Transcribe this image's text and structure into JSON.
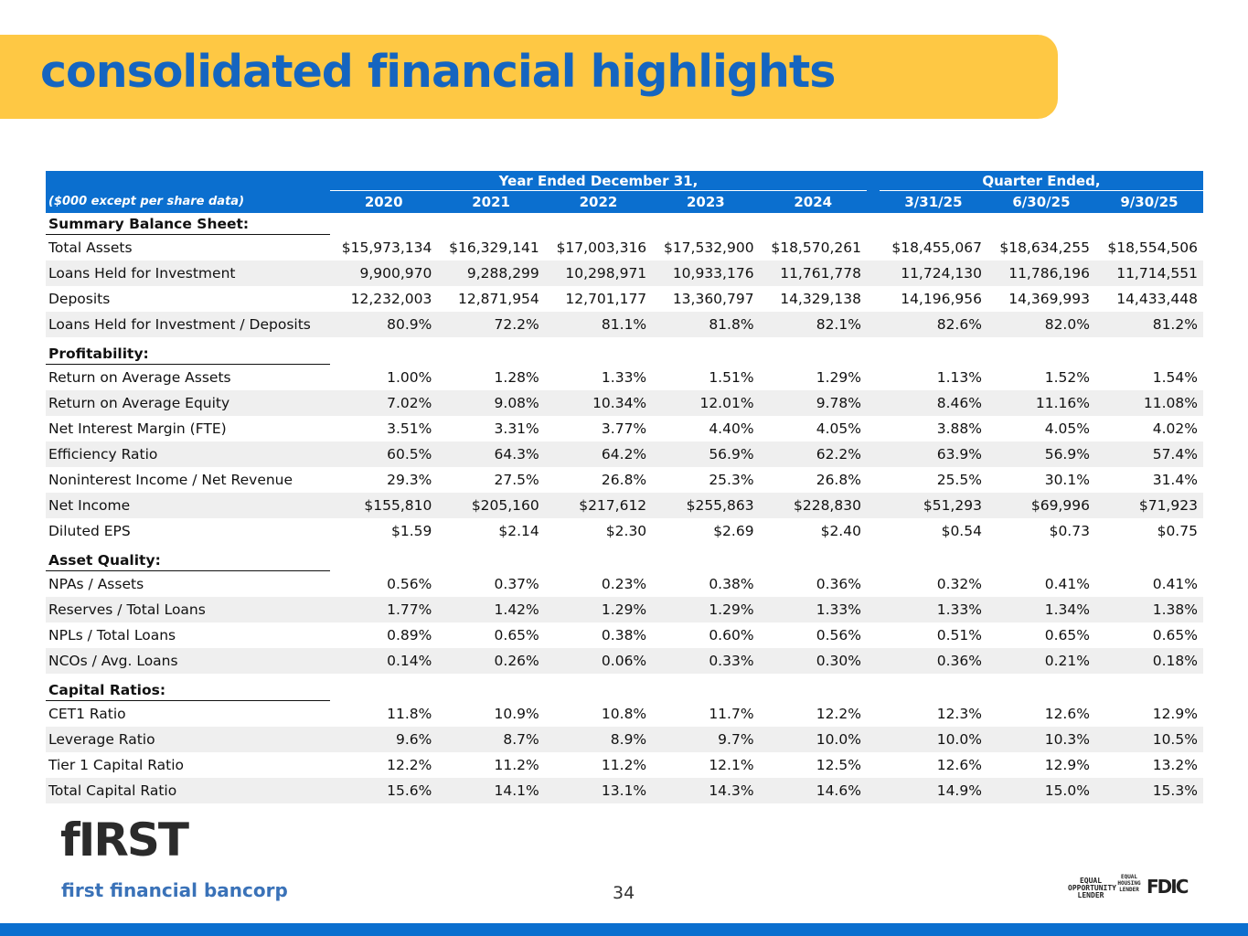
{
  "header": {
    "title": "consolidated financial highlights"
  },
  "table": {
    "note": "($000 except per share data)",
    "groups": [
      "Year Ended December 31,",
      "Quarter Ended,"
    ],
    "columns": [
      "2020",
      "2021",
      "2022",
      "2023",
      "2024",
      "3/31/25",
      "6/30/25",
      "9/30/25"
    ],
    "sections": [
      {
        "title": "Summary Balance Sheet:",
        "rows": [
          [
            "Total Assets",
            "$15,973,134",
            "$16,329,141",
            "$17,003,316",
            "$17,532,900",
            "$18,570,261",
            "$18,455,067",
            "$18,634,255",
            "$18,554,506"
          ],
          [
            "Loans Held for Investment",
            "9,900,970",
            "9,288,299",
            "10,298,971",
            "10,933,176",
            "11,761,778",
            "11,724,130",
            "11,786,196",
            "11,714,551"
          ],
          [
            "Deposits",
            "12,232,003",
            "12,871,954",
            "12,701,177",
            "13,360,797",
            "14,329,138",
            "14,196,956",
            "14,369,993",
            "14,433,448"
          ],
          [
            "Loans Held for Investment / Deposits",
            "80.9%",
            "72.2%",
            "81.1%",
            "81.8%",
            "82.1%",
            "82.6%",
            "82.0%",
            "81.2%"
          ]
        ]
      },
      {
        "title": "Profitability:",
        "rows": [
          [
            "Return on Average Assets",
            "1.00%",
            "1.28%",
            "1.33%",
            "1.51%",
            "1.29%",
            "1.13%",
            "1.52%",
            "1.54%"
          ],
          [
            "Return on Average Equity",
            "7.02%",
            "9.08%",
            "10.34%",
            "12.01%",
            "9.78%",
            "8.46%",
            "11.16%",
            "11.08%"
          ],
          [
            "Net Interest Margin (FTE)",
            "3.51%",
            "3.31%",
            "3.77%",
            "4.40%",
            "4.05%",
            "3.88%",
            "4.05%",
            "4.02%"
          ],
          [
            "Efficiency Ratio",
            "60.5%",
            "64.3%",
            "64.2%",
            "56.9%",
            "62.2%",
            "63.9%",
            "56.9%",
            "57.4%"
          ],
          [
            "Noninterest Income / Net Revenue",
            "29.3%",
            "27.5%",
            "26.8%",
            "25.3%",
            "26.8%",
            "25.5%",
            "30.1%",
            "31.4%"
          ],
          [
            "Net Income",
            "$155,810",
            "$205,160",
            "$217,612",
            "$255,863",
            "$228,830",
            "$51,293",
            "$69,996",
            "$71,923"
          ],
          [
            "Diluted EPS",
            "$1.59",
            "$2.14",
            "$2.30",
            "$2.69",
            "$2.40",
            "$0.54",
            "$0.73",
            "$0.75"
          ]
        ]
      },
      {
        "title": "Asset Quality:",
        "rows": [
          [
            "NPAs / Assets",
            "0.56%",
            "0.37%",
            "0.23%",
            "0.38%",
            "0.36%",
            "0.32%",
            "0.41%",
            "0.41%"
          ],
          [
            "Reserves / Total Loans",
            "1.77%",
            "1.42%",
            "1.29%",
            "1.29%",
            "1.33%",
            "1.33%",
            "1.34%",
            "1.38%"
          ],
          [
            "NPLs / Total Loans",
            "0.89%",
            "0.65%",
            "0.38%",
            "0.60%",
            "0.56%",
            "0.51%",
            "0.65%",
            "0.65%"
          ],
          [
            "NCOs / Avg. Loans",
            "0.14%",
            "0.26%",
            "0.06%",
            "0.33%",
            "0.30%",
            "0.36%",
            "0.21%",
            "0.18%"
          ]
        ]
      },
      {
        "title": "Capital Ratios:",
        "rows": [
          [
            "CET1 Ratio",
            "11.8%",
            "10.9%",
            "10.8%",
            "11.7%",
            "12.2%",
            "12.3%",
            "12.6%",
            "12.9%"
          ],
          [
            "Leverage Ratio",
            "9.6%",
            "8.7%",
            "8.9%",
            "9.7%",
            "10.0%",
            "10.0%",
            "10.3%",
            "10.5%"
          ],
          [
            "Tier 1 Capital Ratio",
            "12.2%",
            "11.2%",
            "11.2%",
            "12.1%",
            "12.5%",
            "12.6%",
            "12.9%",
            "13.2%"
          ],
          [
            "Total Capital Ratio",
            "15.6%",
            "14.1%",
            "13.1%",
            "14.3%",
            "14.6%",
            "14.9%",
            "15.0%",
            "15.3%"
          ]
        ]
      }
    ]
  },
  "footer": {
    "logo": "fIRST",
    "company": "first financial bancorp",
    "page": "34",
    "badges": [
      "EQUAL OPPORTUNITY LENDER",
      "EQUAL HOUSING LENDER",
      "FDIC"
    ]
  }
}
